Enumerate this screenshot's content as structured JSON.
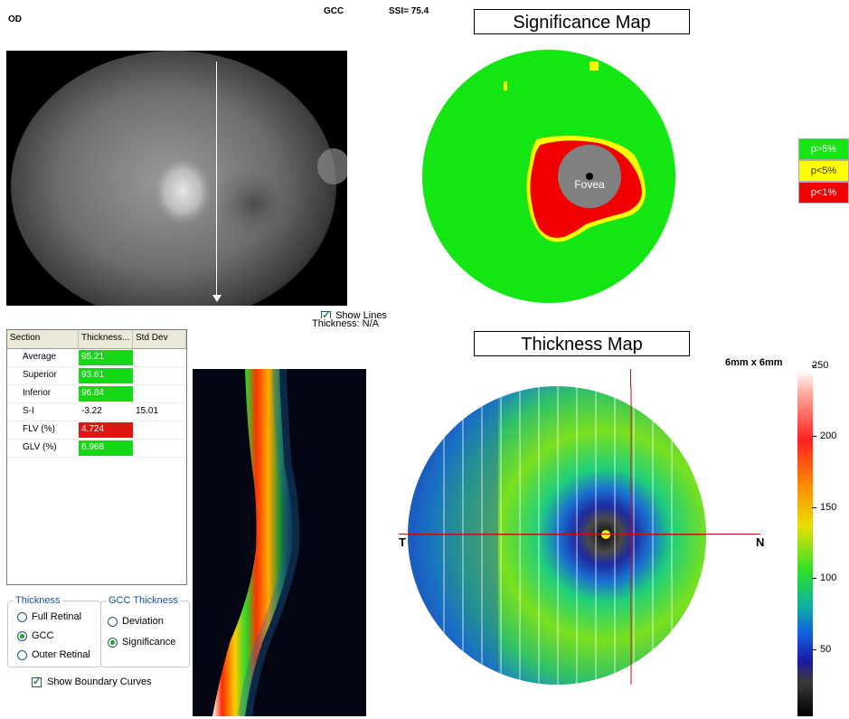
{
  "header": {
    "eye": "OD",
    "scan": "GCC",
    "ssi": "SSI= 75.4"
  },
  "fundus": {
    "show_lines_label": "Show Lines",
    "show_lines_checked": true,
    "thickness_readout": "Thickness: N/A"
  },
  "significance_map": {
    "title": "Significance Map",
    "fovea_label": "Fovea",
    "legend": [
      {
        "label": "p>5%",
        "color": "#14e614"
      },
      {
        "label": "p<5%",
        "color": "#ffff00"
      },
      {
        "label": "p<1%",
        "color": "#f00000"
      }
    ]
  },
  "thickness_map": {
    "title": "Thickness Map",
    "size_label": "6mm x 6mm",
    "left_label": "T",
    "right_label": "N",
    "scale_ticks": [
      "250",
      "200",
      "150",
      "100",
      "50"
    ]
  },
  "table": {
    "columns": [
      "Section",
      "Thickness...",
      "Std Dev"
    ],
    "rows": [
      {
        "section": "Average",
        "thickness": "95.21",
        "std": "",
        "status": "green"
      },
      {
        "section": "Superior",
        "thickness": "93.61",
        "std": "",
        "status": "green"
      },
      {
        "section": "Inferior",
        "thickness": "96.84",
        "std": "",
        "status": "green"
      },
      {
        "section": "S-I",
        "thickness": "-3.22",
        "std": "15.01",
        "status": "none"
      },
      {
        "section": "FLV (%)",
        "thickness": "4.724",
        "std": "",
        "status": "red"
      },
      {
        "section": "GLV (%)",
        "thickness": "6.968",
        "std": "",
        "status": "green"
      }
    ]
  },
  "thickness_group": {
    "title": "Thickness",
    "options": [
      "Full Retinal",
      "GCC",
      "Outer Retinal"
    ],
    "selected": "GCC"
  },
  "gcc_thickness_group": {
    "title": "GCC Thickness",
    "options": [
      "Deviation",
      "Significance"
    ],
    "selected": "Significance"
  },
  "show_boundary": {
    "label": "Show Boundary Curves",
    "checked": true
  },
  "colors": {
    "sig_green": "#14e614",
    "sig_red": "#f00000",
    "sig_yellow": "#ffff00",
    "fovea_gray": "#808080"
  }
}
